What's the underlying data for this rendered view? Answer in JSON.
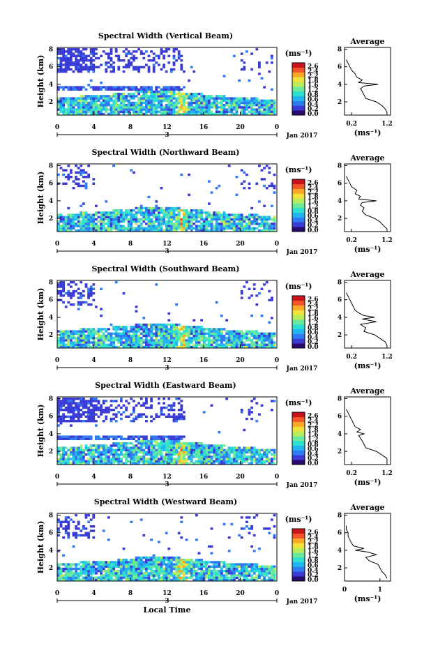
{
  "figure": {
    "xlabel": "Local Time",
    "colorbar_unit": "(ms⁻¹)",
    "colorbar_ticks": [
      "2.6",
      "2.4",
      "2.2",
      "1.8",
      "1.6",
      "1.2",
      "0.8",
      "0.6",
      "0.4",
      "0.2",
      "0.0"
    ],
    "colorbar_colors": [
      "#2a0a6e",
      "#3b3bd6",
      "#2f7bf2",
      "#22b6f0",
      "#2de0d0",
      "#6be89a",
      "#b9ec5a",
      "#f0e23a",
      "#f9a828",
      "#f2562a",
      "#c8141c"
    ],
    "date_label": "3",
    "month_label": "Jan 2017"
  },
  "chart_data": [
    {
      "type": "heatmap",
      "title": "Spectral Width (Vertical Beam)",
      "ylabel": "Height (km)",
      "x_ticks": [
        "0",
        "4",
        "8",
        "12",
        "16",
        "20",
        "0"
      ],
      "x_range": [
        0,
        24
      ],
      "y_ticks": [
        "2",
        "4",
        "6",
        "8"
      ],
      "y_range": [
        0.5,
        8.2
      ],
      "colorbar_range": [
        0.0,
        2.8
      ],
      "profile": {
        "title": "Average",
        "xlabel": "(ms⁻¹)",
        "x_ticks": [
          "0.2",
          "1.2"
        ],
        "x_range": [
          0.0,
          1.3
        ],
        "y_ticks": [
          "2",
          "4",
          "6",
          "8"
        ],
        "y_range": [
          0.5,
          8.2
        ],
        "height": [
          0.8,
          1.2,
          1.6,
          2.0,
          2.4,
          2.8,
          3.2,
          3.5,
          3.8,
          4.0,
          4.2,
          4.5,
          4.8,
          5.2,
          5.6,
          6.0,
          6.4,
          6.8
        ],
        "width": [
          1.2,
          1.15,
          1.05,
          0.9,
          0.6,
          0.55,
          0.5,
          0.45,
          0.55,
          0.95,
          0.4,
          0.5,
          0.35,
          0.3,
          0.2,
          0.15,
          0.1,
          0.05
        ]
      }
    },
    {
      "type": "heatmap",
      "title": "Spectral Width (Northward Beam)",
      "ylabel": "Height (km)",
      "x_ticks": [
        "0",
        "4",
        "8",
        "12",
        "16",
        "20",
        "0"
      ],
      "x_range": [
        0,
        24
      ],
      "y_ticks": [
        "2",
        "4",
        "6",
        "8"
      ],
      "y_range": [
        0.5,
        8.2
      ],
      "colorbar_range": [
        0.0,
        2.8
      ],
      "profile": {
        "title": "Average",
        "xlabel": "(ms⁻¹)",
        "x_ticks": [
          "0.2",
          "1.2"
        ],
        "x_range": [
          0.0,
          1.3
        ],
        "y_ticks": [
          "2",
          "4",
          "6",
          "8"
        ],
        "y_range": [
          0.5,
          8.2
        ],
        "height": [
          0.8,
          1.2,
          1.6,
          2.0,
          2.4,
          2.8,
          3.2,
          3.5,
          3.8,
          4.0,
          4.2,
          4.5,
          4.8,
          5.2,
          5.6,
          6.0,
          6.4,
          6.8
        ],
        "width": [
          1.2,
          1.1,
          1.0,
          0.85,
          0.6,
          0.5,
          0.55,
          0.45,
          0.5,
          0.9,
          0.4,
          0.45,
          0.3,
          0.35,
          0.2,
          0.15,
          0.1,
          0.05
        ]
      }
    },
    {
      "type": "heatmap",
      "title": "Spectral Width (Southward Beam)",
      "ylabel": "Height (km)",
      "x_ticks": [
        "0",
        "4",
        "8",
        "12",
        "16",
        "20",
        "0"
      ],
      "x_range": [
        0,
        24
      ],
      "y_ticks": [
        "2",
        "4",
        "6",
        "8"
      ],
      "y_range": [
        0.5,
        8.2
      ],
      "colorbar_range": [
        0.0,
        2.8
      ],
      "profile": {
        "title": "Average",
        "xlabel": "(ms⁻¹)",
        "x_ticks": [
          "0.2",
          "1.2"
        ],
        "x_range": [
          0.0,
          1.3
        ],
        "y_ticks": [
          "2",
          "4",
          "6",
          "8"
        ],
        "y_range": [
          0.5,
          8.2
        ],
        "height": [
          0.8,
          1.2,
          1.6,
          2.0,
          2.4,
          2.8,
          3.2,
          3.5,
          3.8,
          4.0,
          4.2,
          4.5,
          4.8,
          5.2,
          5.6,
          6.0,
          6.4,
          6.8
        ],
        "width": [
          1.2,
          1.15,
          1.0,
          0.85,
          0.55,
          0.6,
          0.45,
          0.9,
          0.5,
          0.85,
          0.55,
          0.4,
          0.3,
          0.25,
          0.2,
          0.15,
          0.1,
          0.05
        ]
      }
    },
    {
      "type": "heatmap",
      "title": "Spectral Width (Eastward Beam)",
      "ylabel": "Height (km)",
      "x_ticks": [
        "0",
        "4",
        "8",
        "12",
        "16",
        "20",
        "0"
      ],
      "x_range": [
        0,
        24
      ],
      "y_ticks": [
        "2",
        "4",
        "6",
        "8"
      ],
      "y_range": [
        0.5,
        8.2
      ],
      "colorbar_range": [
        0.0,
        2.8
      ],
      "profile": {
        "title": "Average",
        "xlabel": "(ms⁻¹)",
        "x_ticks": [
          "0.2",
          "1.2"
        ],
        "x_range": [
          0.0,
          1.3
        ],
        "y_ticks": [
          "2",
          "4",
          "6",
          "8"
        ],
        "y_range": [
          0.5,
          8.2
        ],
        "height": [
          0.8,
          1.2,
          1.6,
          2.0,
          2.4,
          2.8,
          3.2,
          3.5,
          3.8,
          4.0,
          4.2,
          4.5,
          4.8,
          5.2,
          5.6,
          6.0,
          6.4,
          6.8
        ],
        "width": [
          1.2,
          1.2,
          1.05,
          0.9,
          0.6,
          0.55,
          0.5,
          0.45,
          0.4,
          0.55,
          0.35,
          0.45,
          0.3,
          0.25,
          0.2,
          0.15,
          0.1,
          0.05
        ]
      }
    },
    {
      "type": "heatmap",
      "title": "Spectral Width (Westward Beam)",
      "ylabel": "Height (km)",
      "x_ticks": [
        "0",
        "4",
        "8",
        "12",
        "16",
        "20",
        "0"
      ],
      "x_range": [
        0,
        24
      ],
      "y_ticks": [
        "2",
        "4",
        "6",
        "8"
      ],
      "y_range": [
        0.5,
        8.2
      ],
      "colorbar_range": [
        0.0,
        2.8
      ],
      "profile": {
        "title": "Average",
        "xlabel": "(ms⁻¹)",
        "x_ticks": [
          "0",
          "1"
        ],
        "x_range": [
          0.0,
          1.3
        ],
        "y_ticks": [
          "2",
          "4",
          "6",
          "8"
        ],
        "y_range": [
          0.5,
          8.2
        ],
        "height": [
          0.8,
          1.2,
          1.6,
          2.0,
          2.4,
          2.8,
          3.2,
          3.5,
          3.8,
          4.0,
          4.2,
          4.5,
          4.8,
          5.2,
          5.6,
          6.0,
          6.4,
          6.8
        ],
        "width": [
          1.2,
          1.15,
          1.05,
          1.0,
          0.95,
          0.7,
          0.6,
          0.9,
          0.65,
          0.3,
          0.55,
          0.25,
          0.2,
          0.15,
          0.1,
          0.1,
          0.05,
          0.05
        ]
      }
    }
  ]
}
